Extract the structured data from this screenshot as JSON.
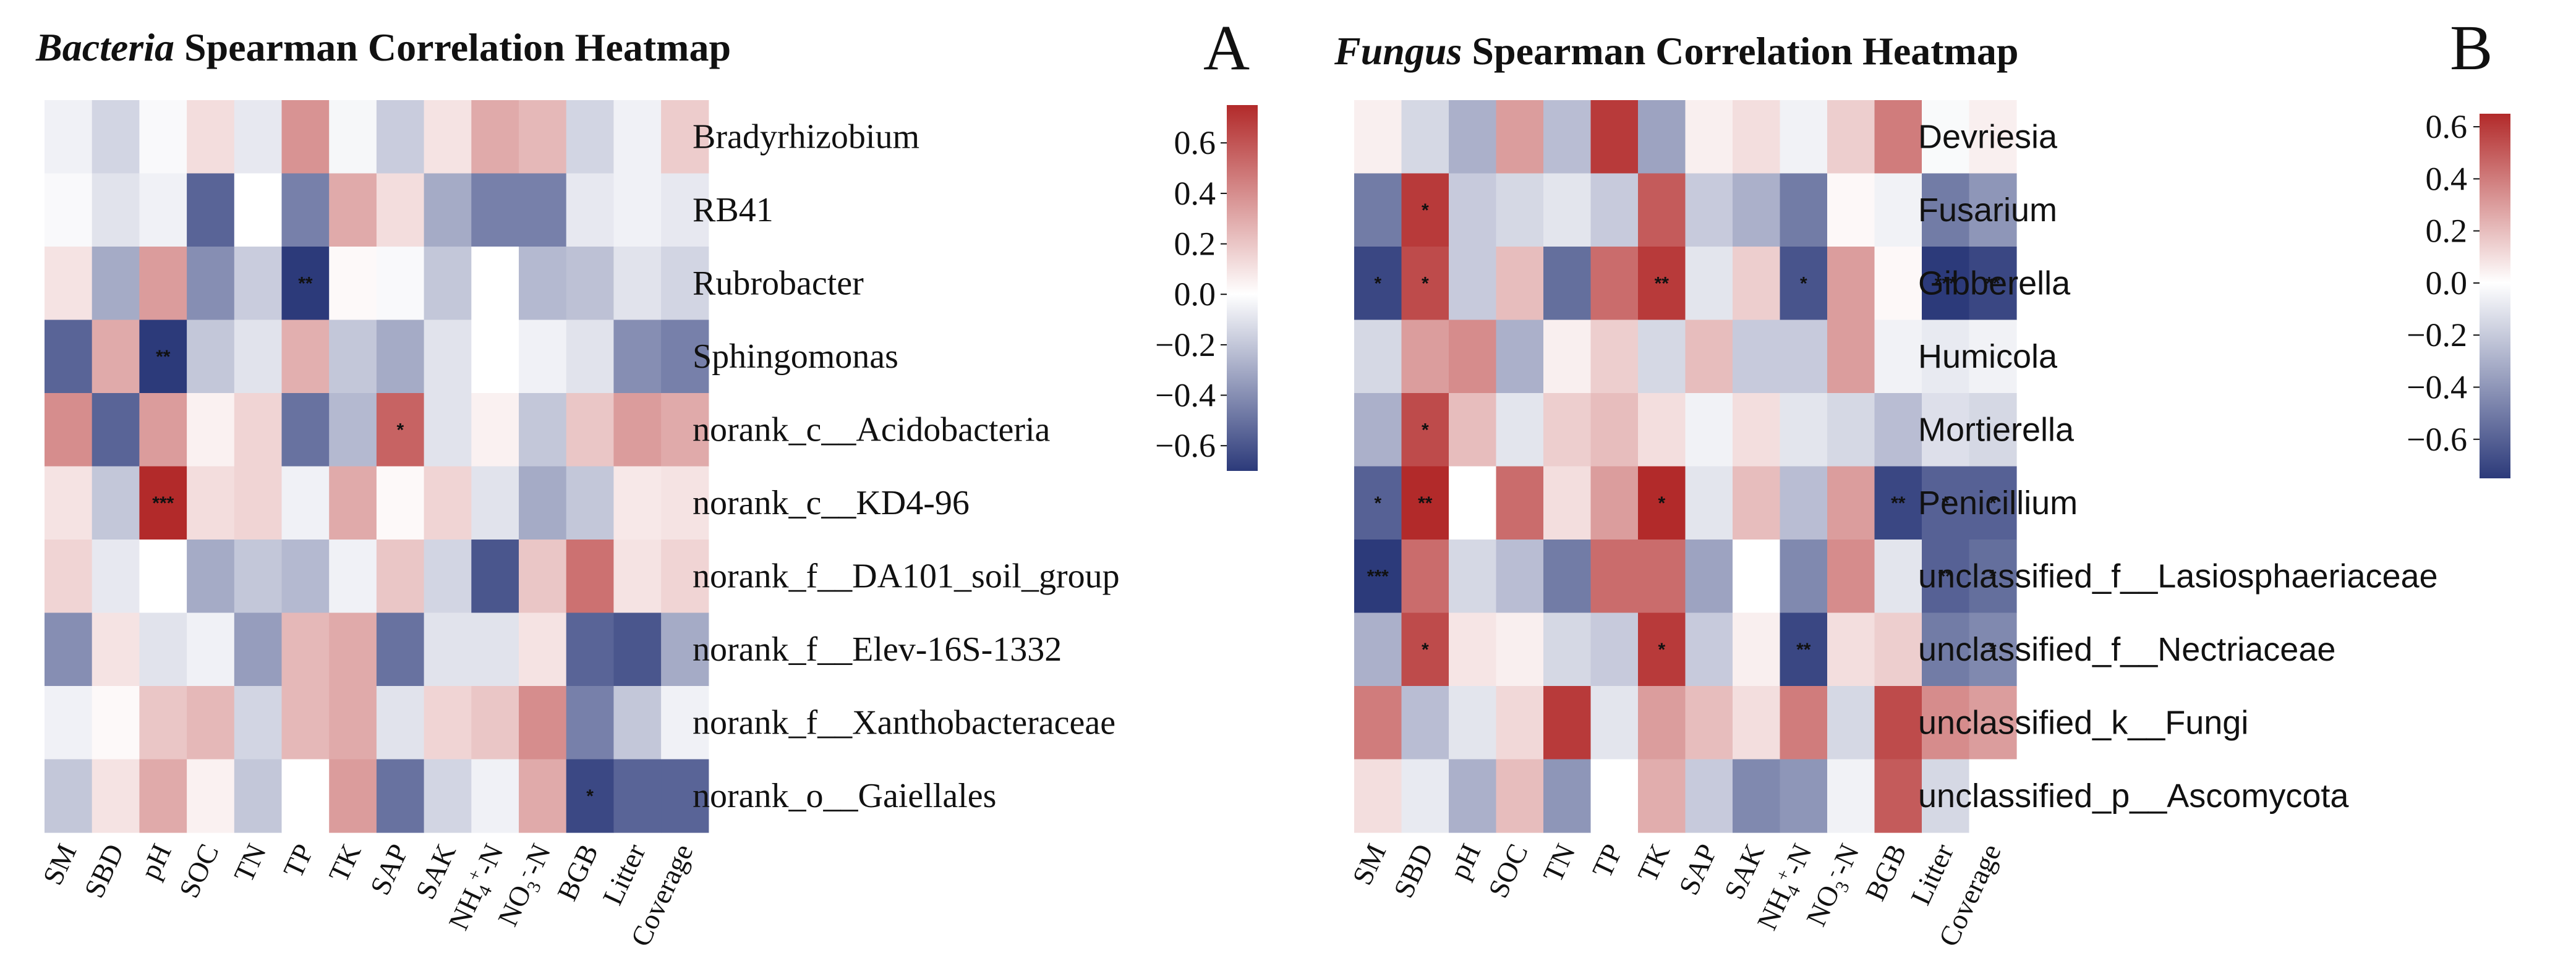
{
  "colors": {
    "neg": "#2c3a7a",
    "mid": "#ffffff",
    "pos": "#b22a2a"
  },
  "chart_data": [
    {
      "type": "heatmap",
      "panel_letter": "A",
      "title_taxon": "Bacteria",
      "title_rest": "Spearman Correlation Heatmap",
      "columns": [
        "SM",
        "SBD",
        "pH",
        "SOC",
        "TN",
        "TP",
        "TK",
        "SAP",
        "SAK",
        "NH4+-N",
        "NO3--N",
        "BGB",
        "Litter",
        "Coverage"
      ],
      "rows": [
        "Bradyrhizobium",
        "RB41",
        "Rubrobacter",
        "Sphingomonas",
        "norank_c__Acidobacteria",
        "norank_c__KD4-96",
        "norank_f__DA101_soil_group",
        "norank_f__Elev-16S-1332",
        "norank_f__Xanthobacteraceae",
        "norank_o__Gaiellales"
      ],
      "values": [
        [
          -0.05,
          -0.15,
          -0.02,
          0.12,
          -0.08,
          0.38,
          -0.03,
          -0.18,
          0.1,
          0.3,
          0.25,
          -0.15,
          -0.05,
          0.18
        ],
        [
          -0.02,
          -0.1,
          -0.05,
          -0.55,
          0.0,
          -0.45,
          0.3,
          0.12,
          -0.3,
          -0.45,
          -0.45,
          -0.08,
          -0.05,
          -0.08
        ],
        [
          0.1,
          -0.3,
          0.35,
          -0.4,
          -0.18,
          -0.7,
          0.02,
          -0.02,
          -0.2,
          0.0,
          -0.25,
          -0.22,
          -0.1,
          -0.15
        ],
        [
          -0.55,
          0.3,
          -0.8,
          -0.2,
          -0.1,
          0.28,
          -0.2,
          -0.3,
          -0.1,
          0.0,
          -0.05,
          -0.1,
          -0.4,
          -0.45
        ],
        [
          0.4,
          -0.55,
          0.35,
          0.05,
          0.15,
          -0.5,
          -0.25,
          0.55,
          -0.1,
          0.05,
          -0.2,
          0.2,
          0.35,
          0.3
        ],
        [
          0.1,
          -0.2,
          0.82,
          0.12,
          0.15,
          -0.05,
          0.3,
          0.02,
          0.15,
          -0.1,
          -0.3,
          -0.2,
          0.08,
          0.1
        ],
        [
          0.15,
          -0.08,
          0.0,
          -0.3,
          -0.2,
          -0.25,
          -0.05,
          0.2,
          -0.15,
          -0.6,
          0.2,
          0.5,
          0.1,
          0.15
        ],
        [
          -0.4,
          0.1,
          -0.1,
          -0.05,
          -0.35,
          0.25,
          0.3,
          -0.5,
          -0.1,
          -0.1,
          0.1,
          -0.55,
          -0.6,
          -0.3
        ],
        [
          -0.05,
          0.02,
          0.2,
          0.25,
          -0.15,
          0.25,
          0.3,
          -0.1,
          0.15,
          0.2,
          0.4,
          -0.45,
          -0.2,
          -0.05
        ],
        [
          -0.2,
          0.1,
          0.3,
          0.05,
          -0.2,
          0.0,
          0.35,
          -0.5,
          -0.15,
          -0.05,
          0.3,
          -0.65,
          -0.55,
          -0.55
        ]
      ],
      "significance": [
        [
          "",
          "",
          "",
          "",
          "",
          "",
          "",
          "",
          "",
          "",
          "",
          "",
          "",
          ""
        ],
        [
          "",
          "",
          "",
          "",
          "",
          "",
          "",
          "",
          "",
          "",
          "",
          "",
          "",
          ""
        ],
        [
          "",
          "",
          "",
          "",
          "",
          "**",
          "",
          "",
          "",
          "",
          "",
          "",
          "",
          ""
        ],
        [
          "",
          "",
          "**",
          "",
          "",
          "",
          "",
          "",
          "",
          "",
          "",
          "",
          "",
          ""
        ],
        [
          "",
          "",
          "",
          "",
          "",
          "",
          "",
          "*",
          "",
          "",
          "",
          "",
          "",
          ""
        ],
        [
          "",
          "",
          "***",
          "",
          "",
          "",
          "",
          "",
          "",
          "",
          "",
          "",
          "",
          ""
        ],
        [
          "",
          "",
          "",
          "",
          "",
          "",
          "",
          "",
          "",
          "",
          "",
          "",
          "",
          ""
        ],
        [
          "",
          "",
          "",
          "",
          "",
          "",
          "",
          "",
          "",
          "",
          "",
          "",
          "",
          ""
        ],
        [
          "",
          "",
          "",
          "",
          "",
          "",
          "",
          "",
          "",
          "",
          "",
          "",
          "",
          ""
        ],
        [
          "",
          "",
          "",
          "",
          "",
          "",
          "",
          "",
          "",
          "",
          "",
          "*",
          "",
          ""
        ]
      ],
      "colorbar": {
        "range": [
          -0.7,
          0.75
        ],
        "ticks": [
          0.6,
          0.4,
          0.2,
          0.0,
          -0.2,
          -0.4,
          -0.6
        ],
        "tick_labels": [
          "0.6",
          "0.4",
          "0.2",
          "0.0",
          "−0.2",
          "−0.4",
          "−0.6"
        ]
      }
    },
    {
      "type": "heatmap",
      "panel_letter": "B",
      "title_taxon": "Fungus",
      "title_rest": "Spearman Correlation Heatmap",
      "columns": [
        "SM",
        "SBD",
        "pH",
        "SOC",
        "TN",
        "TP",
        "TK",
        "SAP",
        "SAK",
        "NH4+-N",
        "NO3--N",
        "BGB",
        "Litter",
        "Coverage"
      ],
      "rows": [
        "Devriesia",
        "Fusarium",
        "Gibberella",
        "Humicola",
        "Mortierella",
        "Penicillium",
        "unclassified_f__Lasiosphaeriaceae",
        "unclassified_f__Nectriaceae",
        "unclassified_k__Fungi",
        "unclassified_p__Ascomycota"
      ],
      "values": [
        [
          0.05,
          -0.15,
          -0.3,
          0.3,
          -0.25,
          0.6,
          -0.35,
          0.05,
          0.1,
          -0.05,
          0.15,
          0.4,
          -0.02,
          0.05
        ],
        [
          -0.5,
          0.6,
          -0.2,
          -0.15,
          -0.1,
          -0.2,
          0.5,
          -0.2,
          -0.3,
          -0.5,
          0.02,
          -0.05,
          -0.5,
          -0.4
        ],
        [
          -0.7,
          0.55,
          -0.2,
          0.2,
          -0.55,
          0.45,
          0.6,
          -0.1,
          0.15,
          -0.65,
          0.3,
          0.02,
          -0.75,
          -0.7
        ],
        [
          -0.15,
          0.3,
          0.35,
          -0.3,
          0.05,
          0.15,
          -0.15,
          0.2,
          -0.2,
          -0.2,
          0.3,
          -0.05,
          -0.08,
          -0.05
        ],
        [
          -0.3,
          0.55,
          0.2,
          -0.1,
          0.15,
          0.2,
          0.1,
          -0.05,
          0.1,
          -0.1,
          -0.15,
          -0.25,
          -0.12,
          -0.15
        ],
        [
          -0.6,
          0.7,
          0.0,
          0.45,
          0.1,
          0.3,
          0.65,
          -0.1,
          0.2,
          -0.25,
          0.3,
          -0.7,
          -0.6,
          -0.6
        ],
        [
          -0.75,
          0.45,
          -0.15,
          -0.25,
          -0.5,
          0.45,
          0.45,
          -0.35,
          0.0,
          -0.45,
          0.35,
          -0.1,
          -0.6,
          -0.55
        ],
        [
          -0.3,
          0.55,
          0.08,
          0.05,
          -0.15,
          -0.2,
          0.6,
          -0.2,
          0.05,
          -0.7,
          0.1,
          0.15,
          -0.5,
          -0.45
        ],
        [
          0.4,
          -0.25,
          -0.1,
          0.12,
          0.6,
          -0.1,
          0.3,
          0.2,
          0.1,
          0.4,
          -0.15,
          0.55,
          0.35,
          0.3
        ],
        [
          0.1,
          -0.08,
          -0.3,
          0.2,
          -0.4,
          0.0,
          0.25,
          -0.2,
          -0.45,
          -0.4,
          -0.05,
          0.5,
          -0.15,
          0.0
        ]
      ],
      "significance": [
        [
          "",
          "",
          "",
          "",
          "",
          "",
          "",
          "",
          "",
          "",
          "",
          "",
          "",
          ""
        ],
        [
          "",
          "*",
          "",
          "",
          "",
          "",
          "",
          "",
          "",
          "",
          "",
          "",
          "",
          ""
        ],
        [
          "*",
          "*",
          "",
          "",
          "",
          "",
          "**",
          "",
          "",
          "*",
          "",
          "",
          "***",
          "**"
        ],
        [
          "",
          "",
          "",
          "",
          "",
          "",
          "",
          "",
          "",
          "",
          "",
          "",
          "",
          ""
        ],
        [
          "",
          "*",
          "",
          "",
          "",
          "",
          "",
          "",
          "",
          "",
          "",
          "",
          "",
          ""
        ],
        [
          "*",
          "**",
          "",
          "",
          "",
          "",
          "*",
          "",
          "",
          "",
          "",
          "**",
          "*",
          "*"
        ],
        [
          "***",
          "",
          "",
          "",
          "",
          "",
          "",
          "",
          "",
          "",
          "",
          "",
          "**",
          "*"
        ],
        [
          "",
          "*",
          "",
          "",
          "",
          "",
          "*",
          "",
          "",
          "**",
          "",
          "",
          "",
          "*"
        ],
        [
          "",
          "",
          "",
          "",
          "",
          "",
          "",
          "",
          "",
          "",
          "",
          "",
          "",
          ""
        ],
        [
          "",
          "",
          "",
          "",
          "",
          "",
          "",
          "",
          "",
          "",
          "",
          "",
          "",
          ""
        ]
      ],
      "colorbar": {
        "range": [
          -0.75,
          0.65
        ],
        "ticks": [
          0.6,
          0.4,
          0.2,
          0.0,
          -0.2,
          -0.4,
          -0.6
        ],
        "tick_labels": [
          "0.6",
          "0.4",
          "0.2",
          "0.0",
          "−0.2",
          "−0.4",
          "−0.6"
        ]
      }
    }
  ]
}
